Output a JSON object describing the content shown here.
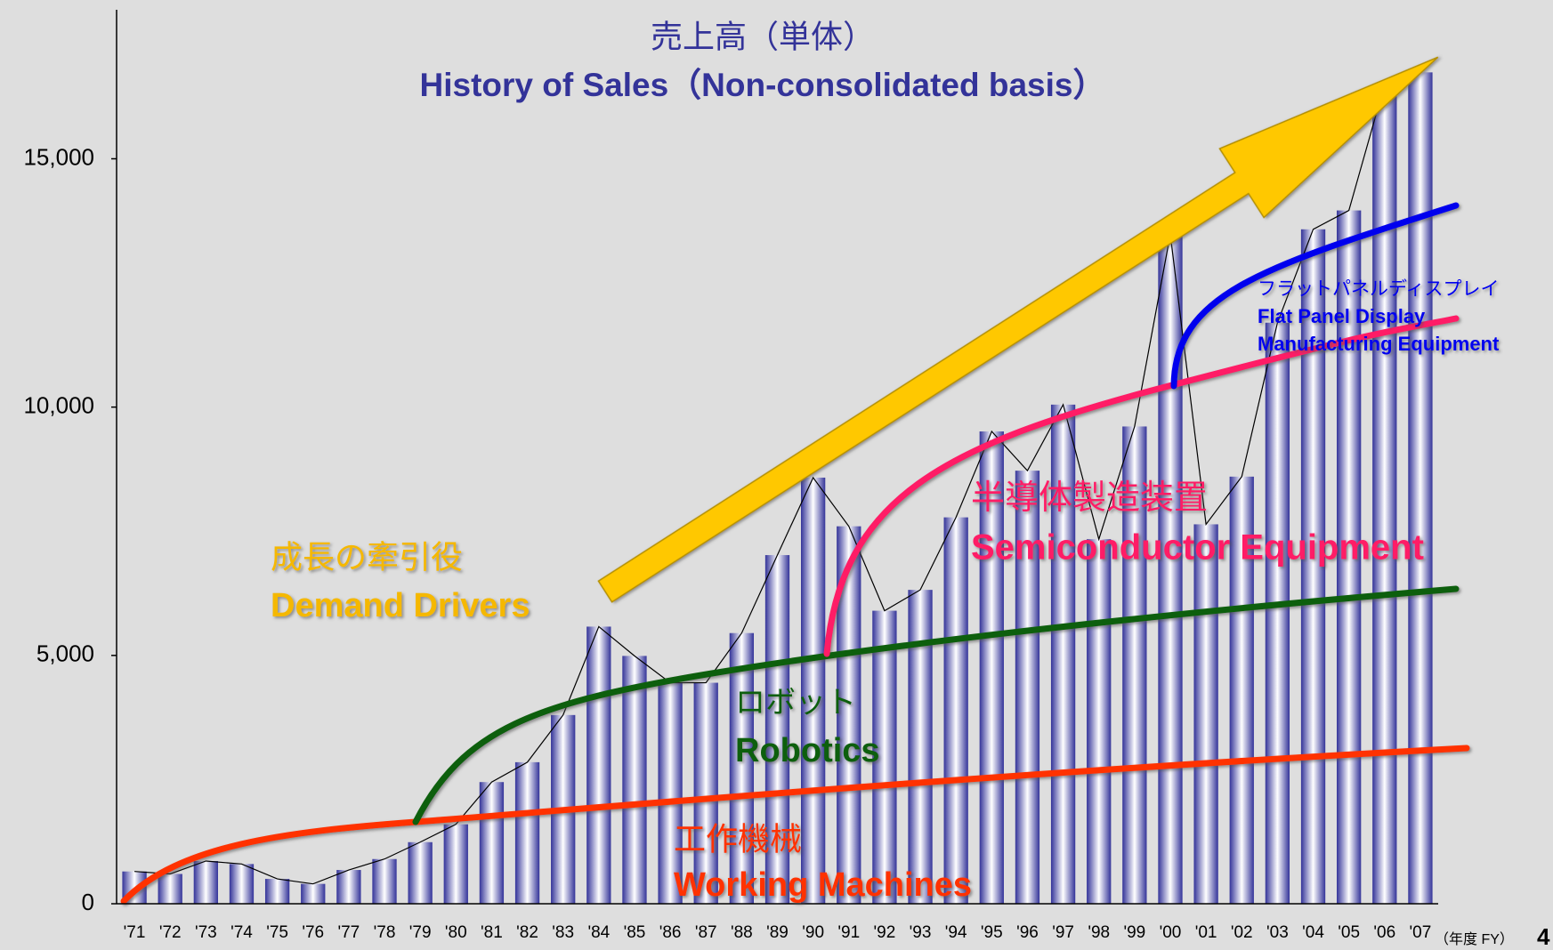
{
  "chart_data": {
    "type": "bar",
    "title": "売上高（単体）",
    "subtitle": "History of Sales（Non-consolidated basis）",
    "categories": [
      "'71",
      "'72",
      "'73",
      "'74",
      "'75",
      "'76",
      "'77",
      "'78",
      "'79",
      "'80",
      "'81",
      "'82",
      "'83",
      "'84",
      "'85",
      "'86",
      "'87",
      "'88",
      "'89",
      "'90",
      "'91",
      "'92",
      "'93",
      "'94",
      "'95",
      "'96",
      "'97",
      "'98",
      "'99",
      "'00",
      "'01",
      "'02",
      "'03",
      "'04",
      "'05",
      "'06",
      "'07"
    ],
    "values": [
      650,
      600,
      860,
      800,
      500,
      400,
      680,
      900,
      1240,
      1600,
      2450,
      2850,
      3800,
      5580,
      4990,
      4450,
      4450,
      5450,
      7020,
      8580,
      7600,
      5900,
      6320,
      7780,
      9510,
      8720,
      10050,
      7340,
      9610,
      13480,
      7640,
      8600,
      11700,
      13580,
      13960,
      16500,
      16740
    ],
    "color": "#333399",
    "ylim": [
      0,
      18000
    ],
    "yticks": [
      0,
      {
        "value": 5000,
        "label": "5,000"
      },
      {
        "value": 10000,
        "label": "10,000"
      },
      {
        "value": 15000,
        "label": "15,000"
      }
    ],
    "grid": false,
    "x_unit_label": "（年度 FY）",
    "annotations": [
      "成長の牽引役",
      "Demand Drivers",
      "ロボット",
      "Robotics",
      "工作機械",
      "Working Machines",
      "半導体製造装置",
      "Semiconductor Equipment",
      "フラットパネルディスプレイ",
      "Flat Panel Display",
      "Manufacturing Equipment"
    ]
  },
  "page_number": "4"
}
